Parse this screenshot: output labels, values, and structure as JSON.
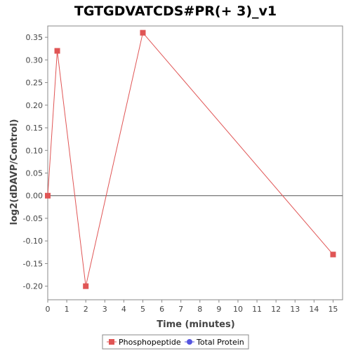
{
  "chart_data": {
    "type": "line",
    "title": "TGTGDVATCDS#PR(+ 3)_v1",
    "xlabel": "Time (minutes)",
    "ylabel": "log2(dDAVP/Control)",
    "xlim": [
      0,
      15.5
    ],
    "ylim": [
      -0.23,
      0.375
    ],
    "xticks": [
      0,
      1,
      2,
      3,
      4,
      5,
      6,
      7,
      8,
      9,
      10,
      11,
      12,
      13,
      14,
      15
    ],
    "yticks": [
      -0.2,
      -0.15,
      -0.1,
      -0.05,
      0.0,
      0.05,
      0.1,
      0.15,
      0.2,
      0.25,
      0.3,
      0.35
    ],
    "xtick_labels": [
      "0",
      "1",
      "2",
      "3",
      "4",
      "5",
      "6",
      "7",
      "8",
      "9",
      "10",
      "11",
      "12",
      "13",
      "14",
      "15"
    ],
    "ytick_labels": [
      "-0.20",
      "-0.15",
      "-0.10",
      "-0.05",
      "0.00",
      "0.05",
      "0.10",
      "0.15",
      "0.20",
      "0.25",
      "0.30",
      "0.35"
    ],
    "series": [
      {
        "name": "Phosphopeptide",
        "color": "#e05555",
        "marker": "square",
        "x": [
          0,
          0.5,
          2,
          5,
          15
        ],
        "y": [
          0.0,
          0.32,
          -0.2,
          0.36,
          -0.13
        ]
      },
      {
        "name": "Total Protein",
        "color": "#5555e0",
        "marker": "circle",
        "x": [],
        "y": []
      }
    ],
    "zero_line": true,
    "grid": false,
    "legend_position": "bottom"
  }
}
